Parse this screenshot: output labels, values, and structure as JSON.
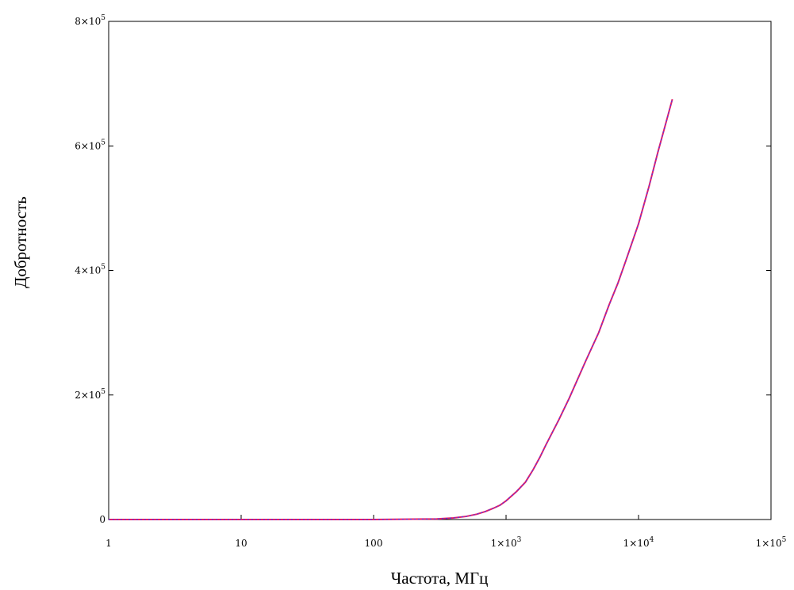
{
  "chart_data": {
    "type": "line",
    "xlabel": "Частота, МГц",
    "ylabel": "Добротность",
    "x_scale": "log",
    "xlim": [
      1,
      100000
    ],
    "ylim": [
      0,
      800000
    ],
    "grid": false,
    "x_ticks": [
      {
        "value": 1,
        "label": "1"
      },
      {
        "value": 10,
        "label": "10"
      },
      {
        "value": 100,
        "label": "100"
      },
      {
        "value": 1000,
        "label": "1×10",
        "exp": "3"
      },
      {
        "value": 10000,
        "label": "1×10",
        "exp": "4"
      },
      {
        "value": 100000,
        "label": "1×10",
        "exp": "5"
      }
    ],
    "y_ticks": [
      {
        "value": 0,
        "label": "0",
        "exp": ""
      },
      {
        "value": 200000,
        "label": "2×10",
        "exp": "5"
      },
      {
        "value": 400000,
        "label": "4×10",
        "exp": "5"
      },
      {
        "value": 600000,
        "label": "6×10",
        "exp": "5"
      },
      {
        "value": 800000,
        "label": "8×10",
        "exp": "5"
      }
    ],
    "series": [
      {
        "color": "#e0206a",
        "dash_color": "#3a3aff",
        "x": [
          1,
          10,
          100,
          300,
          400,
          500,
          600,
          700,
          800,
          900,
          1000,
          1200,
          1400,
          1600,
          1800,
          2000,
          2500,
          3000,
          4000,
          5000,
          6000,
          7000,
          8000,
          10000,
          12000,
          14000,
          16000,
          18000
        ],
        "y": [
          0,
          0,
          0,
          1000,
          2500,
          5000,
          8500,
          13000,
          18000,
          23000,
          30000,
          45000,
          60000,
          80000,
          100000,
          120000,
          160000,
          195000,
          255000,
          300000,
          345000,
          380000,
          415000,
          475000,
          535000,
          590000,
          635000,
          675000
        ]
      }
    ]
  }
}
